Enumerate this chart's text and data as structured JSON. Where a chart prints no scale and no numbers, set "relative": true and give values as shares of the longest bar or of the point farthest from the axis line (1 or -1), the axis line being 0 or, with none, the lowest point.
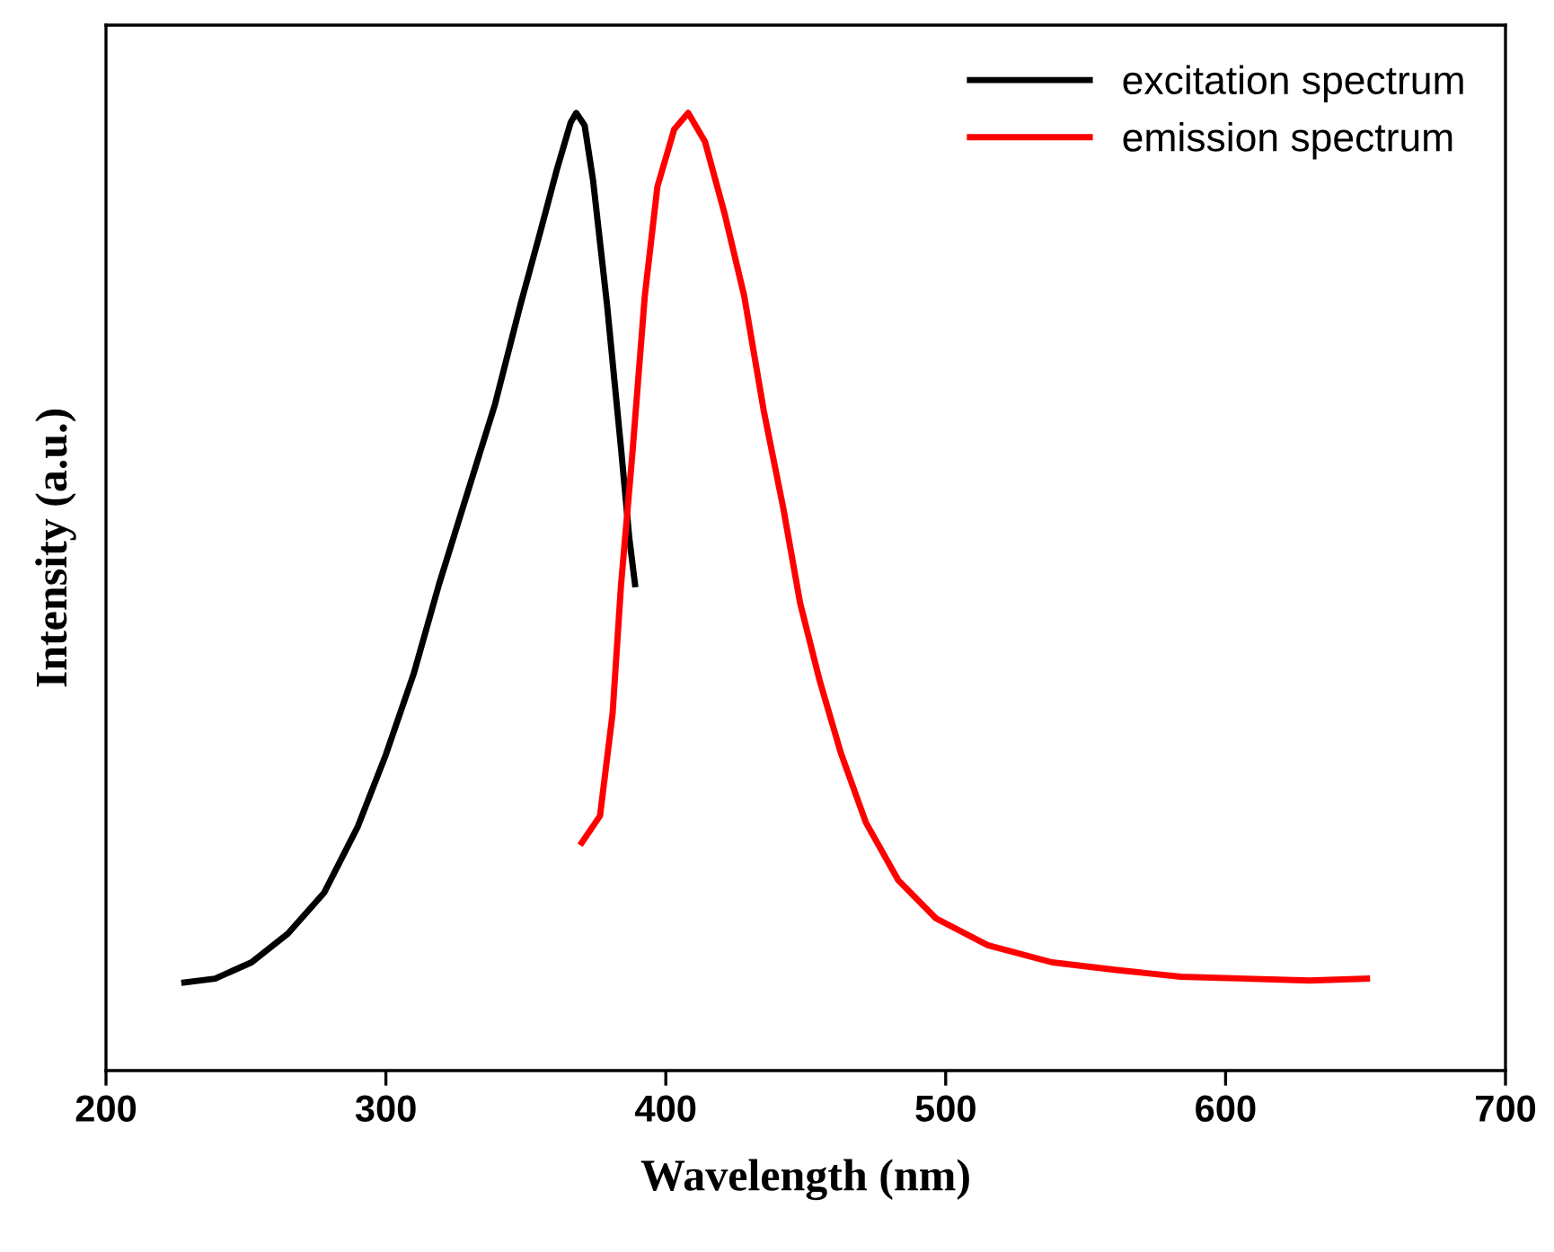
{
  "chart_data": {
    "type": "line",
    "relative": true,
    "xlabel": "Wavelength (nm)",
    "ylabel": "Intensity (a.u.)",
    "xlim": [
      200,
      700
    ],
    "xticks": [
      200,
      300,
      400,
      500,
      600,
      700
    ],
    "legend": "top right",
    "grid": false,
    "marker": "none",
    "line_style": "solid",
    "series": [
      {
        "name": "excitation spectrum",
        "color": "#000000",
        "x": [
          228,
          239,
          252,
          265,
          278,
          290,
          300,
          310,
          319,
          329,
          339,
          348,
          355,
          361,
          366,
          368,
          371,
          374,
          379,
          384,
          387,
          389
        ],
        "values": [
          0.092,
          0.096,
          0.113,
          0.143,
          0.186,
          0.255,
          0.33,
          0.415,
          0.508,
          0.602,
          0.696,
          0.799,
          0.874,
          0.94,
          0.99,
          1.0,
          0.987,
          0.93,
          0.8,
          0.65,
          0.555,
          0.508
        ]
      },
      {
        "name": "emission spectrum",
        "color": "#ff0000",
        "x": [
          370,
          376.5,
          381,
          384,
          388,
          392.5,
          397,
          403,
          408,
          414,
          421,
          428,
          435,
          442,
          448,
          455,
          462.5,
          471.5,
          483,
          496.5,
          515,
          538,
          561,
          584,
          607,
          630,
          650.5
        ],
        "values": [
          0.238,
          0.266,
          0.373,
          0.507,
          0.642,
          0.809,
          0.923,
          0.983,
          1.0,
          0.97,
          0.895,
          0.809,
          0.689,
          0.587,
          0.488,
          0.407,
          0.332,
          0.259,
          0.199,
          0.159,
          0.131,
          0.113,
          0.105,
          0.098,
          0.096,
          0.094,
          0.096
        ]
      }
    ]
  }
}
